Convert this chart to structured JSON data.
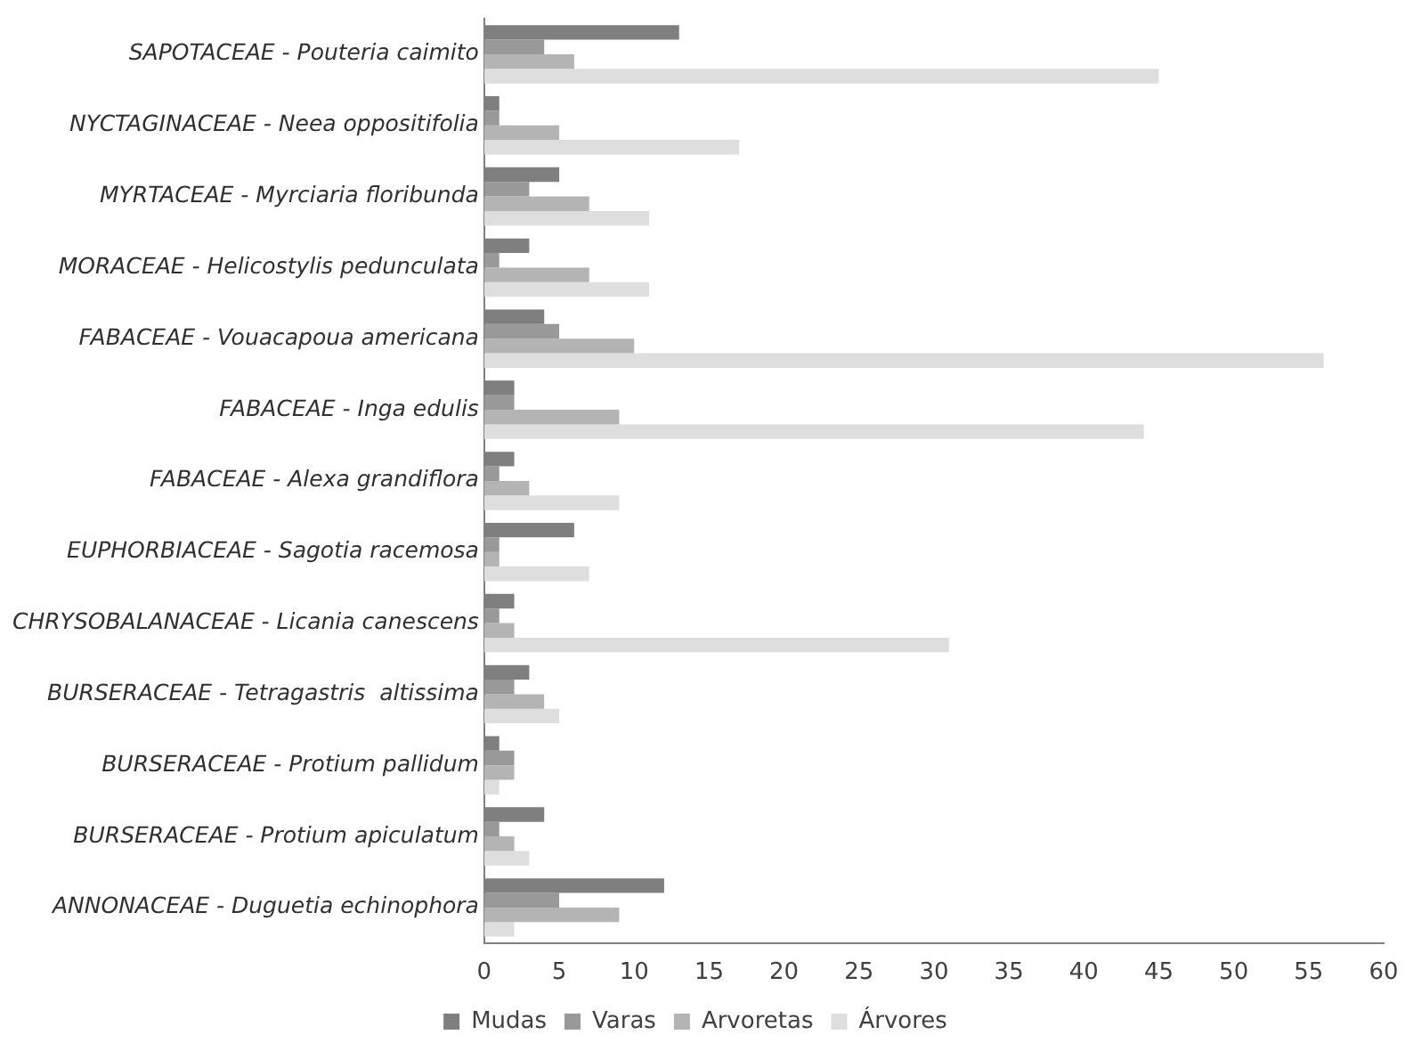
{
  "chart_data": {
    "type": "bar",
    "orientation": "horizontal",
    "categories": [
      "SAPOTACEAE - Pouteria caimito",
      "NYCTAGINACEAE - Neea oppositifolia",
      "MYRTACEAE - Myrciaria floribunda",
      "MORACEAE - Helicostylis pedunculata",
      "FABACEAE - Vouacapoua americana",
      "FABACEAE - Inga edulis",
      "FABACEAE - Alexa grandiflora",
      "EUPHORBIACEAE - Sagotia racemosa",
      "CHRYSOBALANACEAE - Licania canescens",
      "BURSERACEAE - Tetragastris  altissima",
      "BURSERACEAE - Protium pallidum",
      "BURSERACEAE - Protium apiculatum",
      "ANNONACEAE - Duguetia echinophora"
    ],
    "series": [
      {
        "name": "Mudas",
        "color": "#7f7f7f",
        "values": [
          13,
          1,
          5,
          3,
          4,
          2,
          2,
          6,
          2,
          3,
          1,
          4,
          12
        ]
      },
      {
        "name": "Varas",
        "color": "#999999",
        "values": [
          4,
          1,
          3,
          1,
          5,
          2,
          1,
          1,
          1,
          2,
          2,
          1,
          5
        ]
      },
      {
        "name": "Arvoretas",
        "color": "#b4b4b4",
        "values": [
          6,
          5,
          7,
          7,
          10,
          9,
          3,
          1,
          2,
          4,
          2,
          2,
          9
        ]
      },
      {
        "name": "Árvores",
        "color": "#dedede",
        "values": [
          45,
          17,
          11,
          11,
          56,
          44,
          9,
          7,
          31,
          5,
          1,
          3,
          2
        ]
      }
    ],
    "xlim": [
      0,
      60
    ],
    "xticks": [
      0,
      5,
      10,
      15,
      20,
      25,
      30,
      35,
      40,
      45,
      50,
      55,
      60
    ],
    "grid": false,
    "legend": "bottom"
  }
}
